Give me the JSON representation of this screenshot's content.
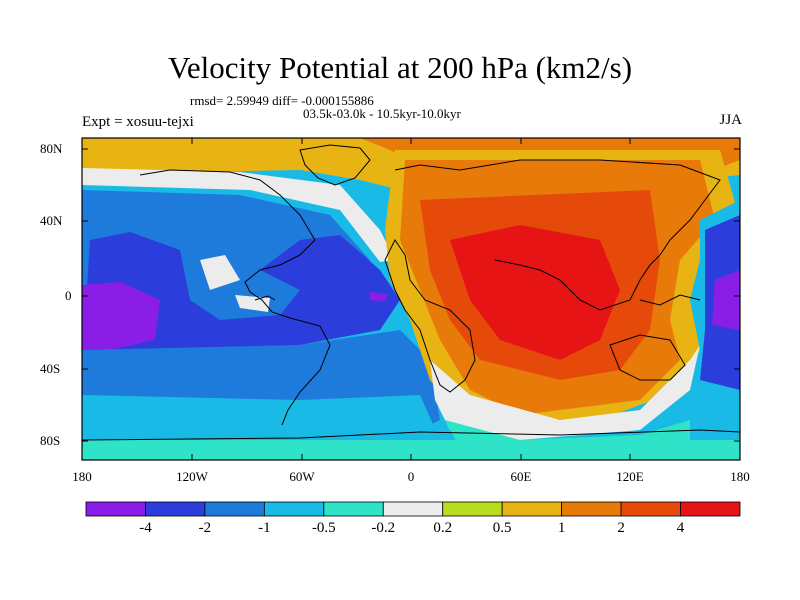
{
  "title": "Velocity Potential at 200 hPa (km2/s)",
  "stats": {
    "rmsd_text": "rmsd= 2.59949 diff= -0.000155886"
  },
  "period_text": "03.5k-03.0k - 10.5kyr-10.0kyr",
  "experiment_text": "Expt = xosuu-tejxi",
  "season": "JJA",
  "map": {
    "projection": "cylindrical-equidistant",
    "y_ticks": [
      "80N",
      "40N",
      "0",
      "40S",
      "80S"
    ],
    "x_ticks": [
      "180",
      "120W",
      "60W",
      "0",
      "60E",
      "120E",
      "180"
    ]
  },
  "colorbar": {
    "labels": [
      "-4",
      "-2",
      "-1",
      "-0.5",
      "-0.2",
      "0.2",
      "0.5",
      "1",
      "2",
      "4"
    ],
    "colors": [
      "#8b1ee6",
      "#2b3ddb",
      "#1e7bdc",
      "#19bbe6",
      "#2ee3c8",
      "#ececec",
      "#b8dc1e",
      "#e8b414",
      "#e87a0a",
      "#e64a0a",
      "#e61414"
    ]
  }
}
